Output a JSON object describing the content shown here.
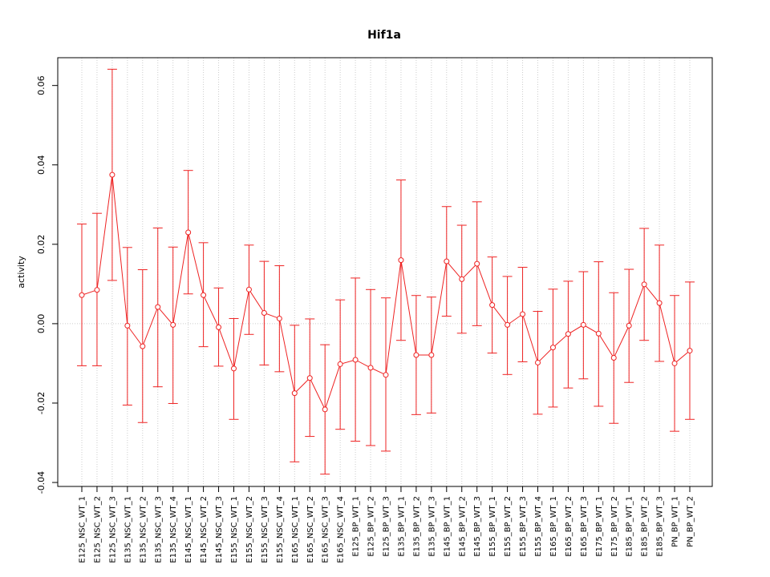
{
  "chart_data": {
    "type": "line",
    "title": "Hif1a",
    "xlabel": "",
    "ylabel": "activity",
    "ylim": [
      -0.041,
      0.067
    ],
    "yticks": [
      -0.04,
      -0.02,
      0.0,
      0.02,
      0.04,
      0.06
    ],
    "ytick_labels": [
      "-0.04",
      "-0.02",
      "0.00",
      "0.02",
      "0.04",
      "0.06"
    ],
    "grid": true,
    "colors": {
      "series": "#ee2222",
      "grid": "#cccccc",
      "axis": "#000000"
    },
    "categories": [
      "E125_NSC_WT_1",
      "E125_NSC_WT_2",
      "E125_NSC_WT_3",
      "E135_NSC_WT_1",
      "E135_NSC_WT_2",
      "E135_NSC_WT_3",
      "E135_NSC_WT_4",
      "E145_NSC_WT_1",
      "E145_NSC_WT_2",
      "E145_NSC_WT_3",
      "E155_NSC_WT_1",
      "E155_NSC_WT_2",
      "E155_NSC_WT_3",
      "E155_NSC_WT_4",
      "E165_NSC_WT_1",
      "E165_NSC_WT_2",
      "E165_NSC_WT_3",
      "E165_NSC_WT_4",
      "E125_BP_WT_1",
      "E125_BP_WT_2",
      "E125_BP_WT_3",
      "E135_BP_WT_1",
      "E135_BP_WT_2",
      "E135_BP_WT_3",
      "E145_BP_WT_1",
      "E145_BP_WT_2",
      "E145_BP_WT_3",
      "E155_BP_WT_1",
      "E155_BP_WT_2",
      "E155_BP_WT_3",
      "E155_BP_WT_4",
      "E165_BP_WT_1",
      "E165_BP_WT_2",
      "E165_BP_WT_3",
      "E175_BP_WT_1",
      "E175_BP_WT_2",
      "E185_BP_WT_1",
      "E185_BP_WT_2",
      "E185_BP_WT_3",
      "PN_BP_WT_1",
      "PN_BP_WT_2"
    ],
    "series": [
      {
        "values": [
          0.0072,
          0.0085,
          0.0375,
          -0.0005,
          -0.0057,
          0.0042,
          -0.0003,
          0.023,
          0.0072,
          -0.0009,
          -0.0113,
          0.0086,
          0.0027,
          0.0013,
          -0.0175,
          -0.0137,
          -0.0216,
          -0.0102,
          -0.0091,
          -0.0111,
          -0.0129,
          0.016,
          -0.0079,
          -0.0079,
          0.0157,
          0.0112,
          0.0151,
          0.0047,
          -0.0003,
          0.0024,
          -0.0098,
          -0.006,
          -0.0026,
          -0.0003,
          -0.0025,
          -0.0086,
          -0.0005,
          0.0099,
          0.0052,
          -0.01,
          -0.0068
        ],
        "lower": [
          -0.0106,
          -0.0106,
          0.0109,
          -0.0205,
          -0.0249,
          -0.0159,
          -0.0201,
          0.0075,
          -0.0058,
          -0.0107,
          -0.0241,
          -0.0027,
          -0.0104,
          -0.0121,
          -0.0348,
          -0.0284,
          -0.0379,
          -0.0266,
          -0.0296,
          -0.0307,
          -0.0321,
          -0.0042,
          -0.0229,
          -0.0225,
          0.0019,
          -0.0024,
          -0.0005,
          -0.0074,
          -0.0128,
          -0.0096,
          -0.0228,
          -0.021,
          -0.0162,
          -0.0139,
          -0.0208,
          -0.0251,
          -0.0148,
          -0.0042,
          -0.0095,
          -0.0271,
          -0.0241
        ],
        "upper": [
          0.0251,
          0.0278,
          0.0641,
          0.0192,
          0.0136,
          0.0241,
          0.0193,
          0.0386,
          0.0204,
          0.009,
          0.0013,
          0.0198,
          0.0157,
          0.0146,
          -0.0004,
          0.0012,
          -0.0053,
          0.006,
          0.0115,
          0.0086,
          0.0065,
          0.0362,
          0.0071,
          0.0067,
          0.0295,
          0.0248,
          0.0307,
          0.0168,
          0.0119,
          0.0142,
          0.0031,
          0.0087,
          0.0107,
          0.0131,
          0.0156,
          0.0078,
          0.0137,
          0.024,
          0.0198,
          0.0071,
          0.0105
        ]
      }
    ]
  }
}
